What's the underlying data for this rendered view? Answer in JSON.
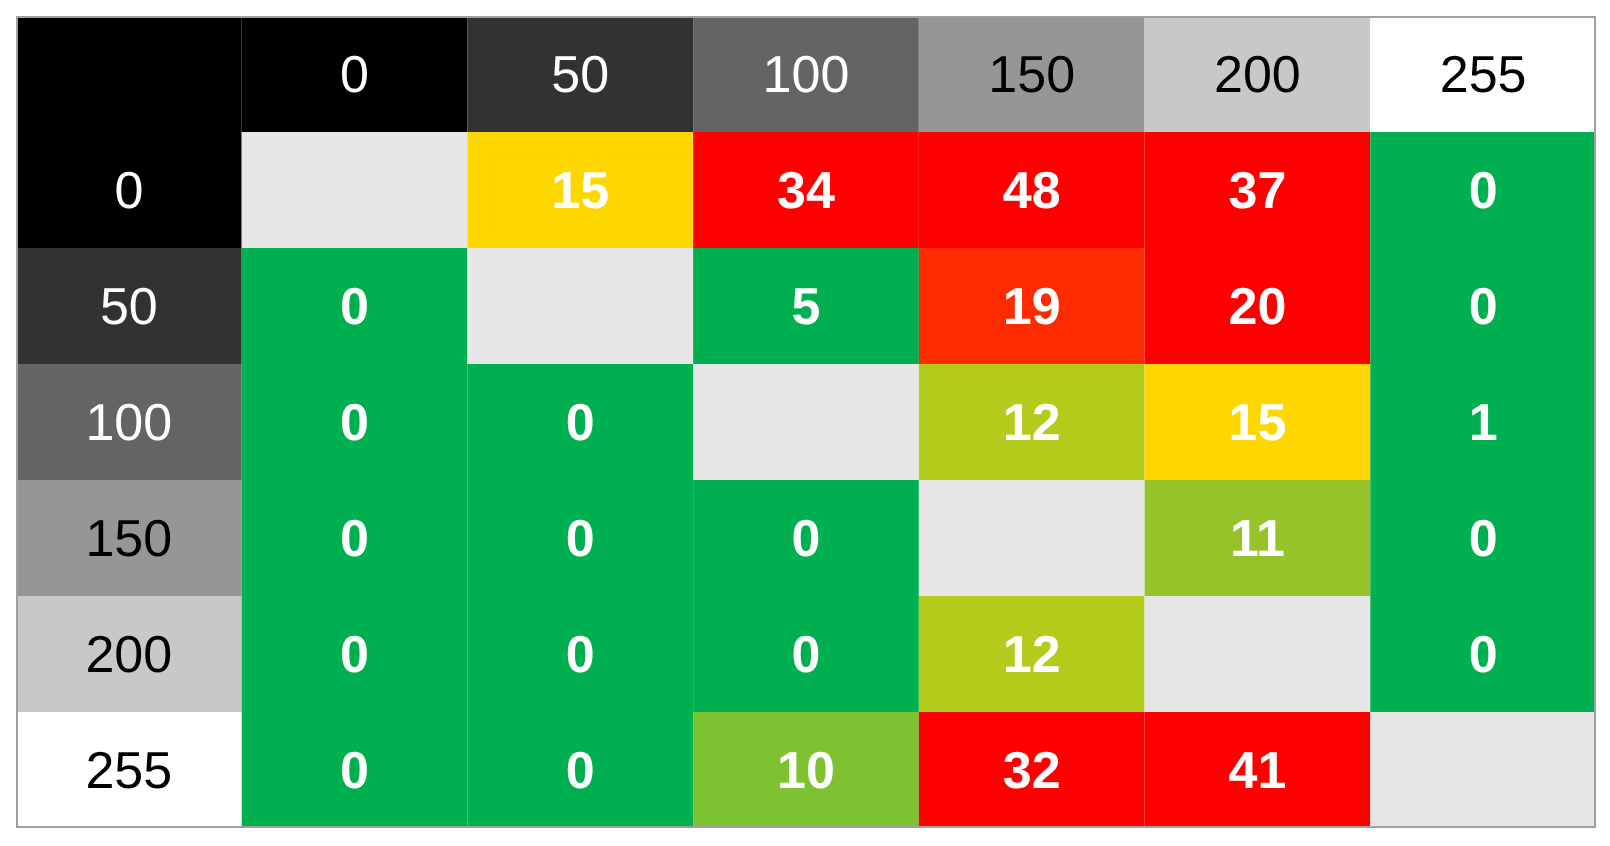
{
  "chart_data": {
    "type": "heatmap",
    "categories": [
      "0",
      "50",
      "100",
      "150",
      "200",
      "255"
    ],
    "y_categories": [
      "0",
      "50",
      "100",
      "150",
      "200",
      "255"
    ],
    "cells": [
      [
        null,
        15,
        34,
        48,
        37,
        0
      ],
      [
        0,
        null,
        5,
        19,
        20,
        0
      ],
      [
        0,
        0,
        null,
        12,
        15,
        1
      ],
      [
        0,
        0,
        0,
        null,
        11,
        0
      ],
      [
        0,
        0,
        0,
        12,
        null,
        0
      ],
      [
        0,
        0,
        10,
        32,
        41,
        null
      ]
    ],
    "colors": [
      [
        "#e6e6e6",
        "#ffd700",
        "#ff0000",
        "#ff0000",
        "#ff0000",
        "#00b050"
      ],
      [
        "#00b050",
        "#e6e6e6",
        "#00b050",
        "#ff2b00",
        "#ff0000",
        "#00b050"
      ],
      [
        "#00b050",
        "#00b050",
        "#e6e6e6",
        "#b3cc1c",
        "#ffd700",
        "#00b050"
      ],
      [
        "#00b050",
        "#00b050",
        "#00b050",
        "#e6e6e6",
        "#96c22a",
        "#00b050"
      ],
      [
        "#00b050",
        "#00b050",
        "#00b050",
        "#b3cc1c",
        "#e6e6e6",
        "#00b050"
      ],
      [
        "#00b050",
        "#00b050",
        "#7ec232",
        "#ff0000",
        "#ff0000",
        "#e6e6e6"
      ]
    ],
    "data_labels": true
  }
}
